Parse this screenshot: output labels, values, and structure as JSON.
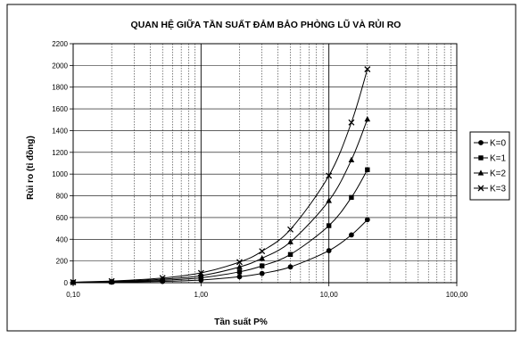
{
  "chart_data": {
    "type": "line",
    "title": "QUAN HỆ GIỮA TẦN SUẤT ĐẢM BẢO PHÒNG LŨ VÀ RỦI RO",
    "xlabel": "Tần suất P%",
    "ylabel": "Rủi ro (tỉ đồng)",
    "x_scale": "log",
    "xlim": [
      0.1,
      100
    ],
    "ylim": [
      0,
      2200
    ],
    "x_ticks": [
      0.1,
      1,
      10,
      100
    ],
    "x_tick_labels": [
      "0,10",
      "1,00",
      "10,00",
      "100,00"
    ],
    "y_ticks": [
      0,
      200,
      400,
      600,
      800,
      1000,
      1200,
      1400,
      1600,
      1800,
      2000,
      2200
    ],
    "y_tick_labels": [
      "0",
      "200",
      "400",
      "600",
      "800",
      "1000",
      "1200",
      "1400",
      "1600",
      "1800",
      "2000",
      "2200"
    ],
    "grid": true,
    "legend_position": "right",
    "x": [
      0.1,
      0.2,
      0.5,
      1,
      2,
      3,
      5,
      10,
      15,
      20
    ],
    "series": [
      {
        "name": "K=0",
        "marker": "circle",
        "values": [
          2,
          5,
          12,
          25,
          55,
          85,
          145,
          295,
          440,
          580
        ]
      },
      {
        "name": "K=1",
        "marker": "square",
        "values": [
          3,
          8,
          22,
          45,
          100,
          155,
          260,
          525,
          785,
          1040
        ]
      },
      {
        "name": "K=2",
        "marker": "triangle",
        "values": [
          4,
          11,
          32,
          65,
          145,
          225,
          375,
          755,
          1130,
          1505
        ]
      },
      {
        "name": "K=3",
        "marker": "cross",
        "values": [
          5,
          15,
          43,
          90,
          190,
          290,
          490,
          985,
          1475,
          1965
        ]
      }
    ]
  }
}
